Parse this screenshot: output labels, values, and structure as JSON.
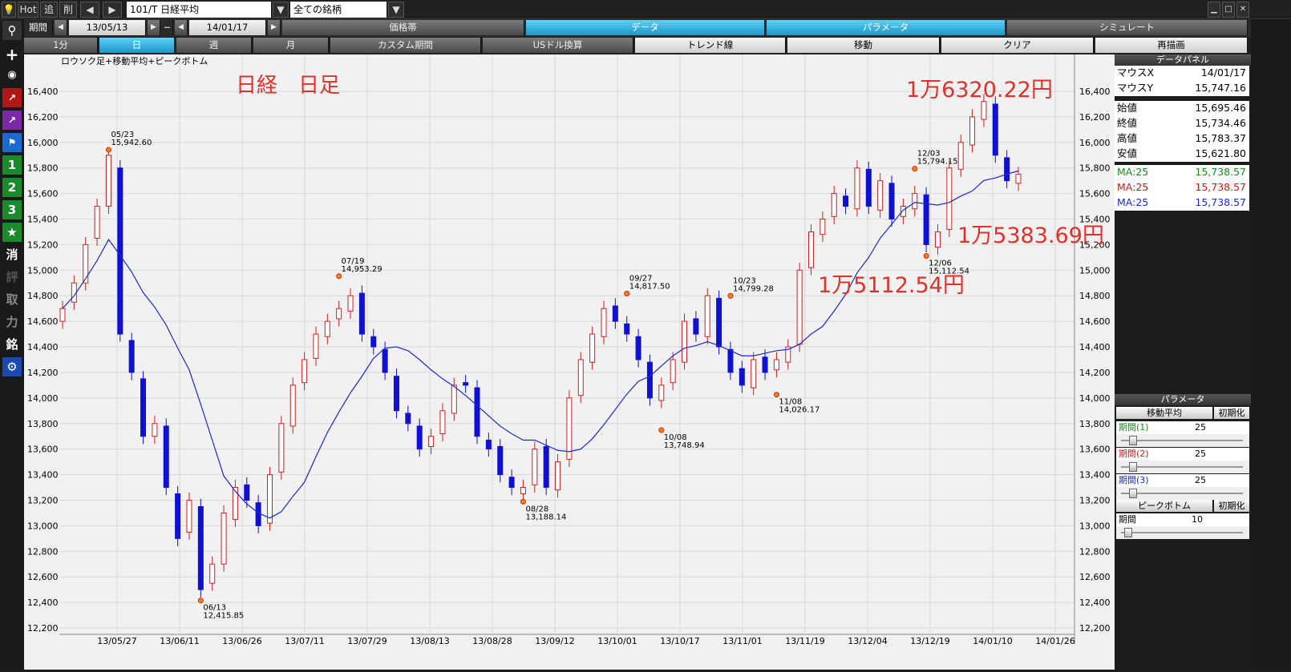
{
  "toolbar": {
    "hot": "Hot",
    "add": "追",
    "del": "削",
    "symbol": "101/T 日経平均",
    "filter": "全ての銘柄",
    "prev": "◀",
    "next": "▶",
    "drop": "▼"
  },
  "period": {
    "label": "期間",
    "from": "13/05/13",
    "to": "14/01/17",
    "tilde": "~",
    "tabs": [
      "価格帯",
      "データ",
      "パラメータ",
      "シミュレート"
    ]
  },
  "interval": {
    "tabs": [
      "1分",
      "日",
      "週",
      "月",
      "カスタム期間",
      "USドル換算",
      "トレンド線",
      "移動",
      "クリア",
      "再描画"
    ]
  },
  "side_icons": [
    "search-icon",
    "plus-icon",
    "camera-icon",
    "line-chart-icon",
    "chart2-icon",
    "flag-icon",
    "1",
    "2",
    "3",
    "★",
    "消",
    "評",
    "取",
    "力",
    "銘",
    "gear-icon"
  ],
  "side_labels": {
    "one": "1",
    "two": "2",
    "three": "3",
    "star": "★",
    "k1": "消",
    "k2": "評",
    "k3": "取",
    "k4": "力",
    "k5": "銘"
  },
  "chart": {
    "subtitle": "ロウソク足+移動平均+ピークボトム",
    "heading": "日経　日足",
    "annotations": [
      "1万6320.22円",
      "1万5383.69円",
      "1万5112.54円"
    ],
    "yticks": [
      "16,400",
      "16,200",
      "16,000",
      "15,800",
      "15,600",
      "15,400",
      "15,200",
      "15,000",
      "14,800",
      "14,600",
      "14,400",
      "14,200",
      "14,000",
      "13,800",
      "13,600",
      "13,400",
      "13,200",
      "13,000",
      "12,800",
      "12,600",
      "12,400",
      "12,200"
    ],
    "xticks": [
      "13/05/27",
      "13/06/11",
      "13/06/26",
      "13/07/11",
      "13/07/29",
      "13/08/13",
      "13/08/28",
      "13/09/12",
      "13/10/01",
      "13/10/17",
      "13/11/01",
      "13/11/19",
      "13/12/04",
      "13/12/19",
      "14/01/10",
      "14/01/26"
    ],
    "peaks": [
      {
        "d": "05/23",
        "v": "15,942.60"
      },
      {
        "d": "06/13",
        "v": "12,415.85"
      },
      {
        "d": "07/19",
        "v": "14,953.29"
      },
      {
        "d": "08/28",
        "v": "13,188.14"
      },
      {
        "d": "09/27",
        "v": "14,817.50"
      },
      {
        "d": "10/08",
        "v": "13,748.94"
      },
      {
        "d": "10/23",
        "v": "14,799.28"
      },
      {
        "d": "11/08",
        "v": "14,026.17"
      },
      {
        "d": "12/03",
        "v": "15,794.15"
      },
      {
        "d": "12/06",
        "v": "15,112.54"
      }
    ]
  },
  "chart_data": {
    "type": "candlestick",
    "ylim": [
      12100,
      16500
    ],
    "ma_period": 25,
    "closes": [
      14700,
      14900,
      15200,
      15500,
      15900,
      14500,
      14200,
      13700,
      13800,
      13300,
      12900,
      13200,
      12500,
      12700,
      13100,
      13300,
      13200,
      13000,
      13400,
      13800,
      14100,
      14300,
      14500,
      14600,
      14700,
      14800,
      14500,
      14400,
      14200,
      13900,
      13800,
      13600,
      13700,
      13900,
      14100,
      14100,
      13700,
      13600,
      13400,
      13300,
      13300,
      13600,
      13300,
      13500,
      14000,
      14300,
      14500,
      14700,
      14600,
      14500,
      14300,
      14000,
      14100,
      14300,
      14600,
      14500,
      14800,
      14400,
      14200,
      14100,
      14300,
      14200,
      14300,
      14400,
      15000,
      15300,
      15400,
      15600,
      15500,
      15800,
      15500,
      15700,
      15400,
      15500,
      15600,
      15200,
      15300,
      15800,
      16000,
      16200,
      16320,
      15900,
      15700,
      15750
    ],
    "opens": [
      14600,
      14750,
      14900,
      15250,
      15500,
      15800,
      14450,
      14150,
      13700,
      13780,
      13250,
      12950,
      13150,
      12550,
      12700,
      13050,
      13320,
      13180,
      13020,
      13420,
      13780,
      14120,
      14310,
      14480,
      14620,
      14680,
      14820,
      14480,
      14380,
      14170,
      13880,
      13780,
      13620,
      13720,
      13880,
      14120,
      14080,
      13670,
      13620,
      13380,
      13250,
      13320,
      13620,
      13280,
      13520,
      14020,
      14280,
      14480,
      14720,
      14580,
      14480,
      14280,
      13980,
      14120,
      14280,
      14620,
      14480,
      14780,
      14380,
      14230,
      14080,
      14320,
      14220,
      14280,
      14420,
      15020,
      15280,
      15420,
      15580,
      15480,
      15790,
      15470,
      15680,
      15420,
      15480,
      15590,
      15180,
      15320,
      15790,
      15980,
      16180,
      16300,
      15880,
      15680
    ]
  },
  "panel": {
    "data_title": "データパネル",
    "rows": [
      {
        "k": "マウスX",
        "v": "14/01/17"
      },
      {
        "k": "マウスY",
        "v": "15,747.16"
      },
      {
        "k": "始値",
        "v": "15,695.46"
      },
      {
        "k": "終値",
        "v": "15,734.46"
      },
      {
        "k": "高値",
        "v": "15,783.37"
      },
      {
        "k": "安値",
        "v": "15,621.80"
      },
      {
        "k": "MA:25",
        "v": "15,738.57"
      },
      {
        "k": "MA:25",
        "v": "15,738.57"
      },
      {
        "k": "MA:25",
        "v": "15,738.57"
      }
    ],
    "param_title": "パラメータ",
    "ma_label": "移動平均",
    "reset": "初期化",
    "periods": [
      {
        "k": "期間(1)",
        "v": "25"
      },
      {
        "k": "期間(2)",
        "v": "25"
      },
      {
        "k": "期間(3)",
        "v": "25"
      }
    ],
    "peak_label": "ピークボトム",
    "peak_period": {
      "k": "期間",
      "v": "10"
    }
  },
  "colors": {
    "up": "#d02020",
    "down": "#1010d0",
    "ma": "#1a2ad0",
    "accent": "#2ab0e0"
  }
}
